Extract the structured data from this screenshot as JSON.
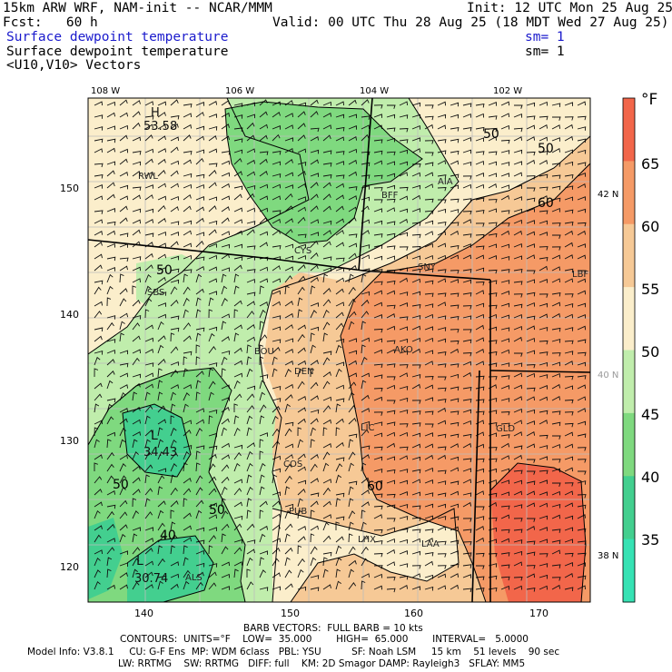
{
  "header": {
    "model_line": "15km ARW WRF, NAM-init -- NCAR/MMM",
    "init_line": "Init: 12 UTC Mon 25 Aug 25",
    "fcst_line": "Fcst:   60 h",
    "valid_line": "Valid: 00 UTC Thu 28 Aug 25 (18 MDT Wed 27 Aug 25)",
    "field1": "Surface dewpoint temperature",
    "sm1": "sm= 1",
    "field2": "Surface dewpoint temperature",
    "sm2": "sm= 1",
    "field3": "<U10,V10> Vectors"
  },
  "axes": {
    "lon_labels": [
      "108 W",
      "106 W",
      "104 W",
      "102 W"
    ],
    "lat_labels_right": [
      "42 N",
      "40 N",
      "38 N"
    ],
    "y_ticks": [
      "150",
      "140",
      "130",
      "120"
    ],
    "x_ticks": [
      "140",
      "150",
      "160",
      "170"
    ]
  },
  "colorbar": {
    "unit": "°F",
    "labels": [
      "65",
      "60",
      "55",
      "50",
      "45",
      "40",
      "35"
    ],
    "colors": [
      "#f2664a",
      "#f59a66",
      "#f6c996",
      "#fbeecb",
      "#c0edac",
      "#7fd97f",
      "#43cf8f",
      "#36e2b4"
    ]
  },
  "map": {
    "stations": [
      "RWL",
      "BFF",
      "AIA",
      "CYS",
      "SNY",
      "LBF",
      "SBS",
      "BOU",
      "AKO",
      "DEN",
      "LIC",
      "GLD",
      "COS",
      "PUB",
      "LHX",
      "LAA",
      "ALS"
    ],
    "contour_labels": [
      "50",
      "50",
      "50",
      "60",
      "60",
      "50",
      "50",
      "40"
    ],
    "extrema": [
      {
        "letter": "H",
        "value": "53.58"
      },
      {
        "letter": "L",
        "value": "34.43"
      },
      {
        "letter": "L",
        "value": "30.74"
      }
    ]
  },
  "footer": {
    "barb_line": "BARB VECTORS:  FULL BARB = 10 kts",
    "contour_line": "CONTOURS:  UNITS=°F    LOW=  35.000        HIGH=  65.000        INTERVAL=   5.0000",
    "model_info_1": "Model Info: V3.8.1     CU: G-F Ens  MP: WDM 6class   PBL: YSU          SF: Noah LSM     15 km    51 levels    90 sec",
    "model_info_2": "LW: RRTMG    SW: RRTMG   DIFF: full    KM: 2D Smagor DAMP: Rayleigh3   SFLAY: MM5"
  }
}
